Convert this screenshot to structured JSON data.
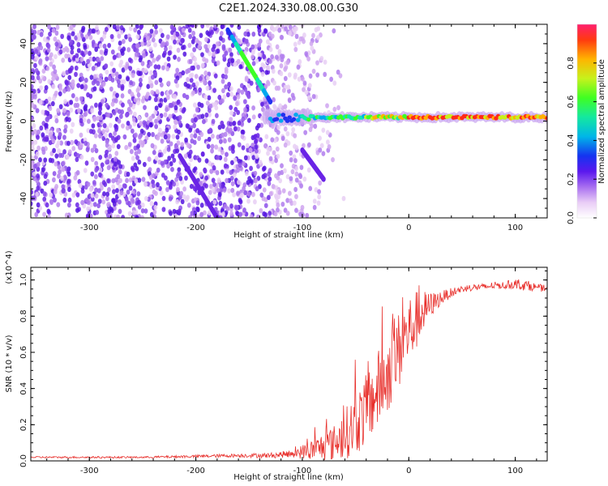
{
  "chart_data": [
    {
      "type": "heatmap",
      "title": "C2E1.2024.330.08.00.G30",
      "xlabel": "Height of straight line (km)",
      "ylabel": "Frequency (Hz)",
      "xlim": [
        -355,
        130
      ],
      "ylim": [
        -50,
        50
      ],
      "xticks": [
        -300,
        -200,
        -100,
        0,
        100
      ],
      "yticks": [
        -40,
        -20,
        0,
        20,
        40
      ],
      "colorbar": {
        "label": "Normalized spectral amplitude",
        "range": [
          0,
          1
        ],
        "ticks": [
          0,
          0.2,
          0.4,
          0.6,
          0.8
        ],
        "tick_labels": [
          "0.0",
          "0.2",
          "0.4",
          "0.6",
          "0.8"
        ],
        "colormap": "rainbow-white-to-red"
      },
      "features": [
        {
          "name": "main-doppler-line",
          "x_range": [
            -120,
            130
          ],
          "y": 2,
          "amplitude_range": [
            0.4,
            1.0
          ]
        },
        {
          "name": "descending-streak-upper",
          "x": [
            -170,
            -130
          ],
          "y": [
            47,
            10
          ]
        },
        {
          "name": "descending-streak-lower",
          "x": [
            -215,
            -180
          ],
          "y": [
            -18,
            -50
          ]
        },
        {
          "name": "descending-streak-mid",
          "x": [
            -100,
            -80
          ],
          "y": [
            -15,
            -30
          ]
        }
      ]
    },
    {
      "type": "line",
      "title": "",
      "xlabel": "Height of straight line (km)",
      "ylabel": "SNR (10 * v/v)",
      "scale_label": "(x10^4)",
      "xlim": [
        -355,
        130
      ],
      "ylim": [
        0,
        1.07
      ],
      "xticks": [
        -300,
        -200,
        -100,
        0,
        100
      ],
      "yticks": [
        0,
        0.2,
        0.4,
        0.6,
        0.8,
        1.0
      ],
      "ytick_labels": [
        "0.0",
        "0.2",
        "0.4",
        "0.6",
        "0.8",
        "1.0"
      ],
      "color": "#e8302c",
      "series": [
        {
          "name": "SNR",
          "x": [
            -355,
            -300,
            -250,
            -200,
            -160,
            -130,
            -110,
            -100,
            -90,
            -80,
            -70,
            -60,
            -50,
            -40,
            -30,
            -20,
            -10,
            0,
            10,
            20,
            30,
            40,
            50,
            60,
            70,
            80,
            90,
            100,
            110,
            120,
            130
          ],
          "y": [
            0.02,
            0.02,
            0.02,
            0.025,
            0.03,
            0.03,
            0.04,
            0.05,
            0.06,
            0.08,
            0.1,
            0.15,
            0.2,
            0.28,
            0.38,
            0.48,
            0.6,
            0.72,
            0.8,
            0.86,
            0.9,
            0.93,
            0.95,
            0.96,
            0.96,
            0.97,
            0.97,
            0.98,
            0.97,
            0.96,
            0.95
          ],
          "noise_envelope": [
            0.005,
            0.005,
            0.005,
            0.008,
            0.01,
            0.015,
            0.02,
            0.04,
            0.06,
            0.08,
            0.1,
            0.14,
            0.17,
            0.2,
            0.22,
            0.22,
            0.22,
            0.2,
            0.15,
            0.07,
            0.04,
            0.025,
            0.02,
            0.02,
            0.02,
            0.02,
            0.02,
            0.03,
            0.03,
            0.02,
            0.02
          ]
        }
      ]
    }
  ]
}
